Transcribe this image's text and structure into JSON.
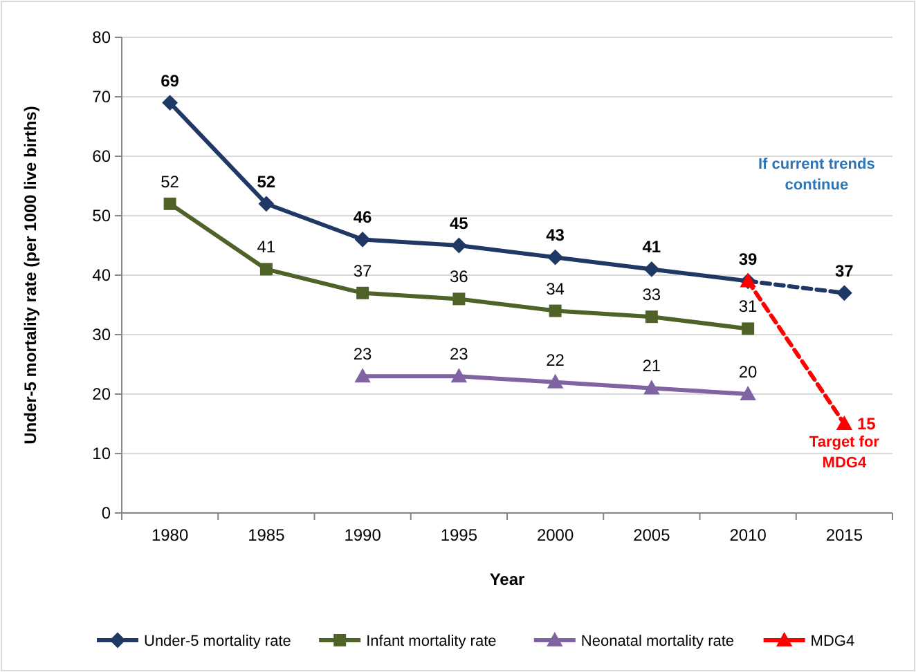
{
  "chart_data": {
    "type": "line",
    "xlabel": "Year",
    "ylabel": "Under-5 mortality rate (per 1000 live births)",
    "categories": [
      "1980",
      "1985",
      "1990",
      "1995",
      "2000",
      "2005",
      "2010",
      "2015"
    ],
    "series": [
      {
        "name": "Under-5 mortality rate",
        "color": "#1f3864",
        "marker": "diamond",
        "line_style": "solid",
        "values": [
          69,
          52,
          46,
          45,
          43,
          41,
          39,
          null
        ],
        "value_labels": [
          "69",
          "52",
          "46",
          "45",
          "43",
          "41",
          "39",
          null
        ]
      },
      {
        "name": "Infant mortality rate",
        "color": "#4f6228",
        "marker": "square",
        "line_style": "solid",
        "values": [
          52,
          41,
          37,
          36,
          34,
          33,
          31,
          null
        ],
        "value_labels": [
          "52",
          "41",
          "37",
          "36",
          "34",
          "33",
          "31",
          null
        ]
      },
      {
        "name": "Neonatal mortality rate",
        "color": "#8064a2",
        "marker": "triangle",
        "line_style": "solid",
        "values": [
          null,
          null,
          23,
          23,
          22,
          21,
          20,
          null
        ],
        "value_labels": [
          null,
          null,
          "23",
          "23",
          "22",
          "21",
          "20",
          null
        ]
      },
      {
        "color": "#1f3864",
        "marker": "diamond",
        "line_style": "dashed",
        "values": [
          null,
          null,
          null,
          null,
          null,
          null,
          39,
          37
        ],
        "value_labels": [
          null,
          null,
          null,
          null,
          null,
          null,
          null,
          "37"
        ]
      },
      {
        "name": "MDG4",
        "color": "#ff0000",
        "marker": "triangle",
        "line_style": "dashed",
        "values": [
          null,
          null,
          null,
          null,
          null,
          null,
          39,
          15
        ],
        "value_labels": [
          null,
          null,
          null,
          null,
          null,
          null,
          null,
          "15"
        ]
      }
    ],
    "annotations": [
      "If current trends continue",
      "Target for MDG4"
    ],
    "ylim": [
      0,
      80
    ],
    "yticks": [
      0,
      10,
      20,
      30,
      40,
      50,
      60,
      70,
      80
    ],
    "grid": "y",
    "legend": "bottom"
  }
}
